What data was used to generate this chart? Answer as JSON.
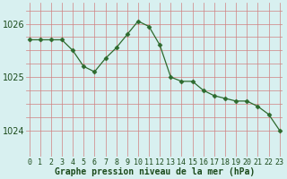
{
  "x": [
    0,
    1,
    2,
    3,
    4,
    5,
    6,
    7,
    8,
    9,
    10,
    11,
    12,
    13,
    14,
    15,
    16,
    17,
    18,
    19,
    20,
    21,
    22,
    23
  ],
  "y": [
    1025.7,
    1025.7,
    1025.7,
    1025.7,
    1025.5,
    1025.2,
    1025.1,
    1025.35,
    1025.55,
    1025.8,
    1026.05,
    1025.95,
    1025.6,
    1025.0,
    1024.92,
    1024.92,
    1024.75,
    1024.65,
    1024.6,
    1024.55,
    1024.55,
    1024.45,
    1024.3,
    1024.0
  ],
  "line_color": "#2d6a2d",
  "marker": "D",
  "marker_size": 2.5,
  "background_color": "#d8f0f0",
  "grid_color_h": "#c8a0a0",
  "grid_color_v": "#c8a0a0",
  "xlabel": "Graphe pression niveau de la mer (hPa)",
  "xlabel_fontsize": 7,
  "tick_fontsize": 6,
  "ylim": [
    1023.5,
    1026.4
  ],
  "yticks": [
    1024,
    1025,
    1026
  ],
  "xticks": [
    0,
    1,
    2,
    3,
    4,
    5,
    6,
    7,
    8,
    9,
    10,
    11,
    12,
    13,
    14,
    15,
    16,
    17,
    18,
    19,
    20,
    21,
    22,
    23
  ]
}
